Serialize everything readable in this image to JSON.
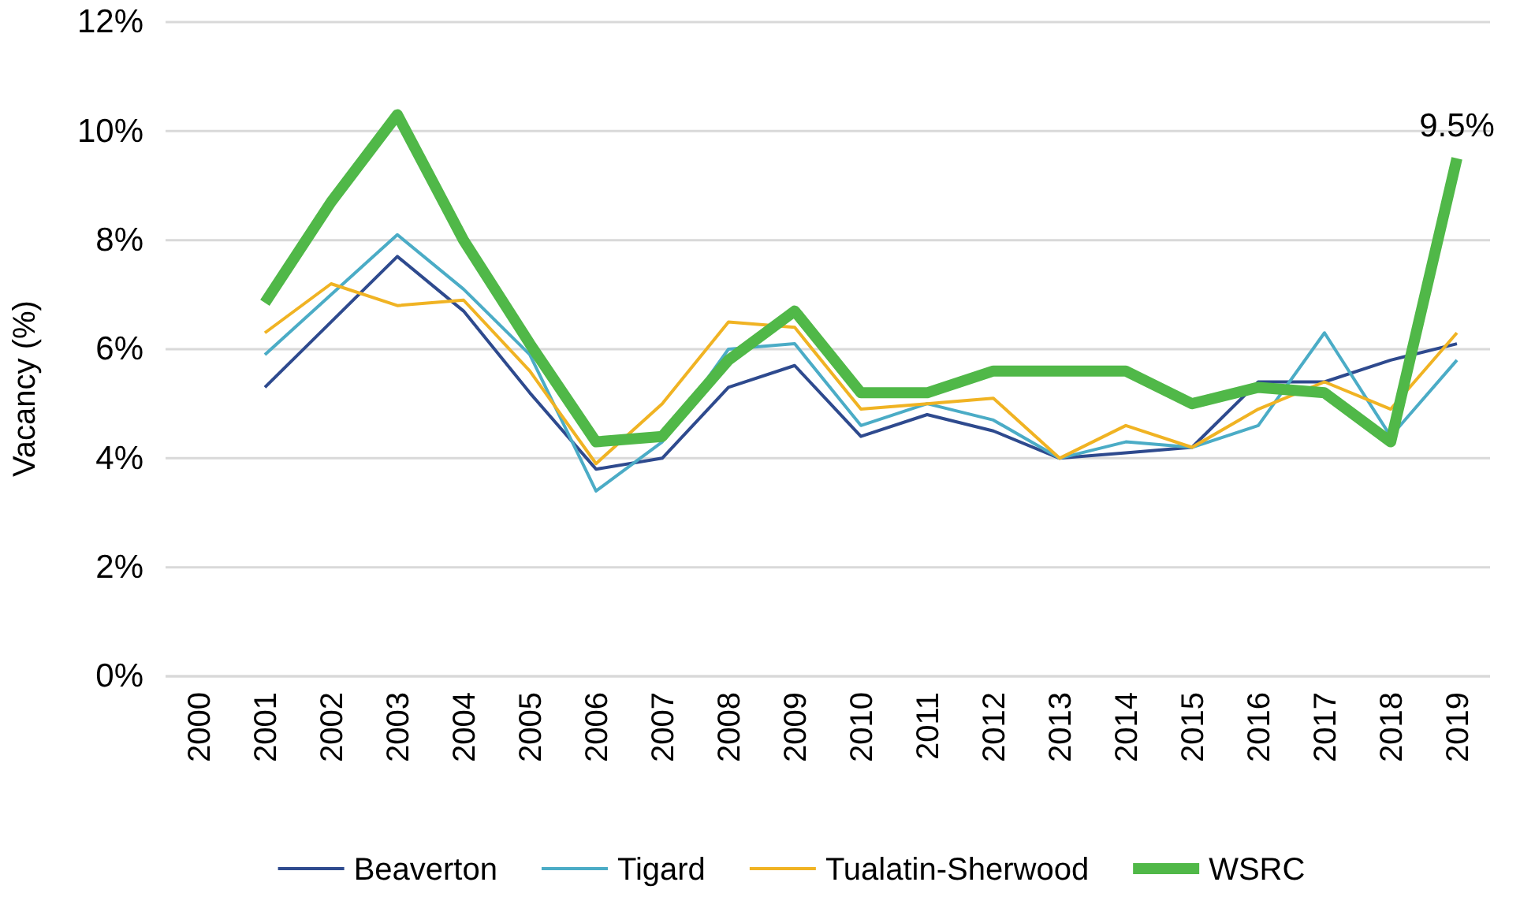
{
  "chart_data": {
    "type": "line",
    "ylabel": "Vacancy (%)",
    "categories": [
      "2000",
      "2001",
      "2002",
      "2003",
      "2004",
      "2005",
      "2006",
      "2007",
      "2008",
      "2009",
      "2010",
      "2011",
      "2012",
      "2013",
      "2014",
      "2015",
      "2016",
      "2017",
      "2018",
      "2019"
    ],
    "series": [
      {
        "name": "Beaverton",
        "color": "#2e4a8e",
        "values": [
          null,
          5.3,
          6.5,
          7.7,
          6.7,
          5.2,
          3.8,
          4.0,
          5.3,
          5.7,
          4.4,
          4.8,
          4.5,
          4.0,
          4.1,
          4.2,
          5.4,
          5.4,
          5.8,
          6.1
        ]
      },
      {
        "name": "Tigard",
        "color": "#4bacc6",
        "values": [
          null,
          5.9,
          7.0,
          8.1,
          7.1,
          5.9,
          3.4,
          4.3,
          6.0,
          6.1,
          4.6,
          5.0,
          4.7,
          4.0,
          4.3,
          4.2,
          4.6,
          6.3,
          4.4,
          5.8
        ]
      },
      {
        "name": "Tualatin-Sherwood",
        "color": "#f0b323",
        "values": [
          null,
          6.3,
          7.2,
          6.8,
          6.9,
          5.6,
          3.9,
          5.0,
          6.5,
          6.4,
          4.9,
          5.0,
          5.1,
          4.0,
          4.6,
          4.2,
          4.9,
          5.4,
          4.9,
          6.3
        ]
      },
      {
        "name": "WSRC",
        "color": "#50b848",
        "values": [
          null,
          6.85,
          8.7,
          10.3,
          8.0,
          6.1,
          4.3,
          4.4,
          5.8,
          6.7,
          5.2,
          5.2,
          5.6,
          5.6,
          5.6,
          5.0,
          5.3,
          5.2,
          4.3,
          9.5
        ]
      }
    ],
    "annotations": [
      {
        "text": "9.5%",
        "x": "2019",
        "y": 9.5
      }
    ],
    "ylim": [
      0,
      12
    ],
    "yticks": [
      {
        "value": 0,
        "label": "0%"
      },
      {
        "value": 2,
        "label": "2%"
      },
      {
        "value": 4,
        "label": "4%"
      },
      {
        "value": 6,
        "label": "6%"
      },
      {
        "value": 8,
        "label": "8%"
      },
      {
        "value": 10,
        "label": "10%"
      },
      {
        "value": 12,
        "label": "12%"
      }
    ],
    "grid": "y",
    "legend": "bottom",
    "marker": "none",
    "line_style": "solid"
  }
}
